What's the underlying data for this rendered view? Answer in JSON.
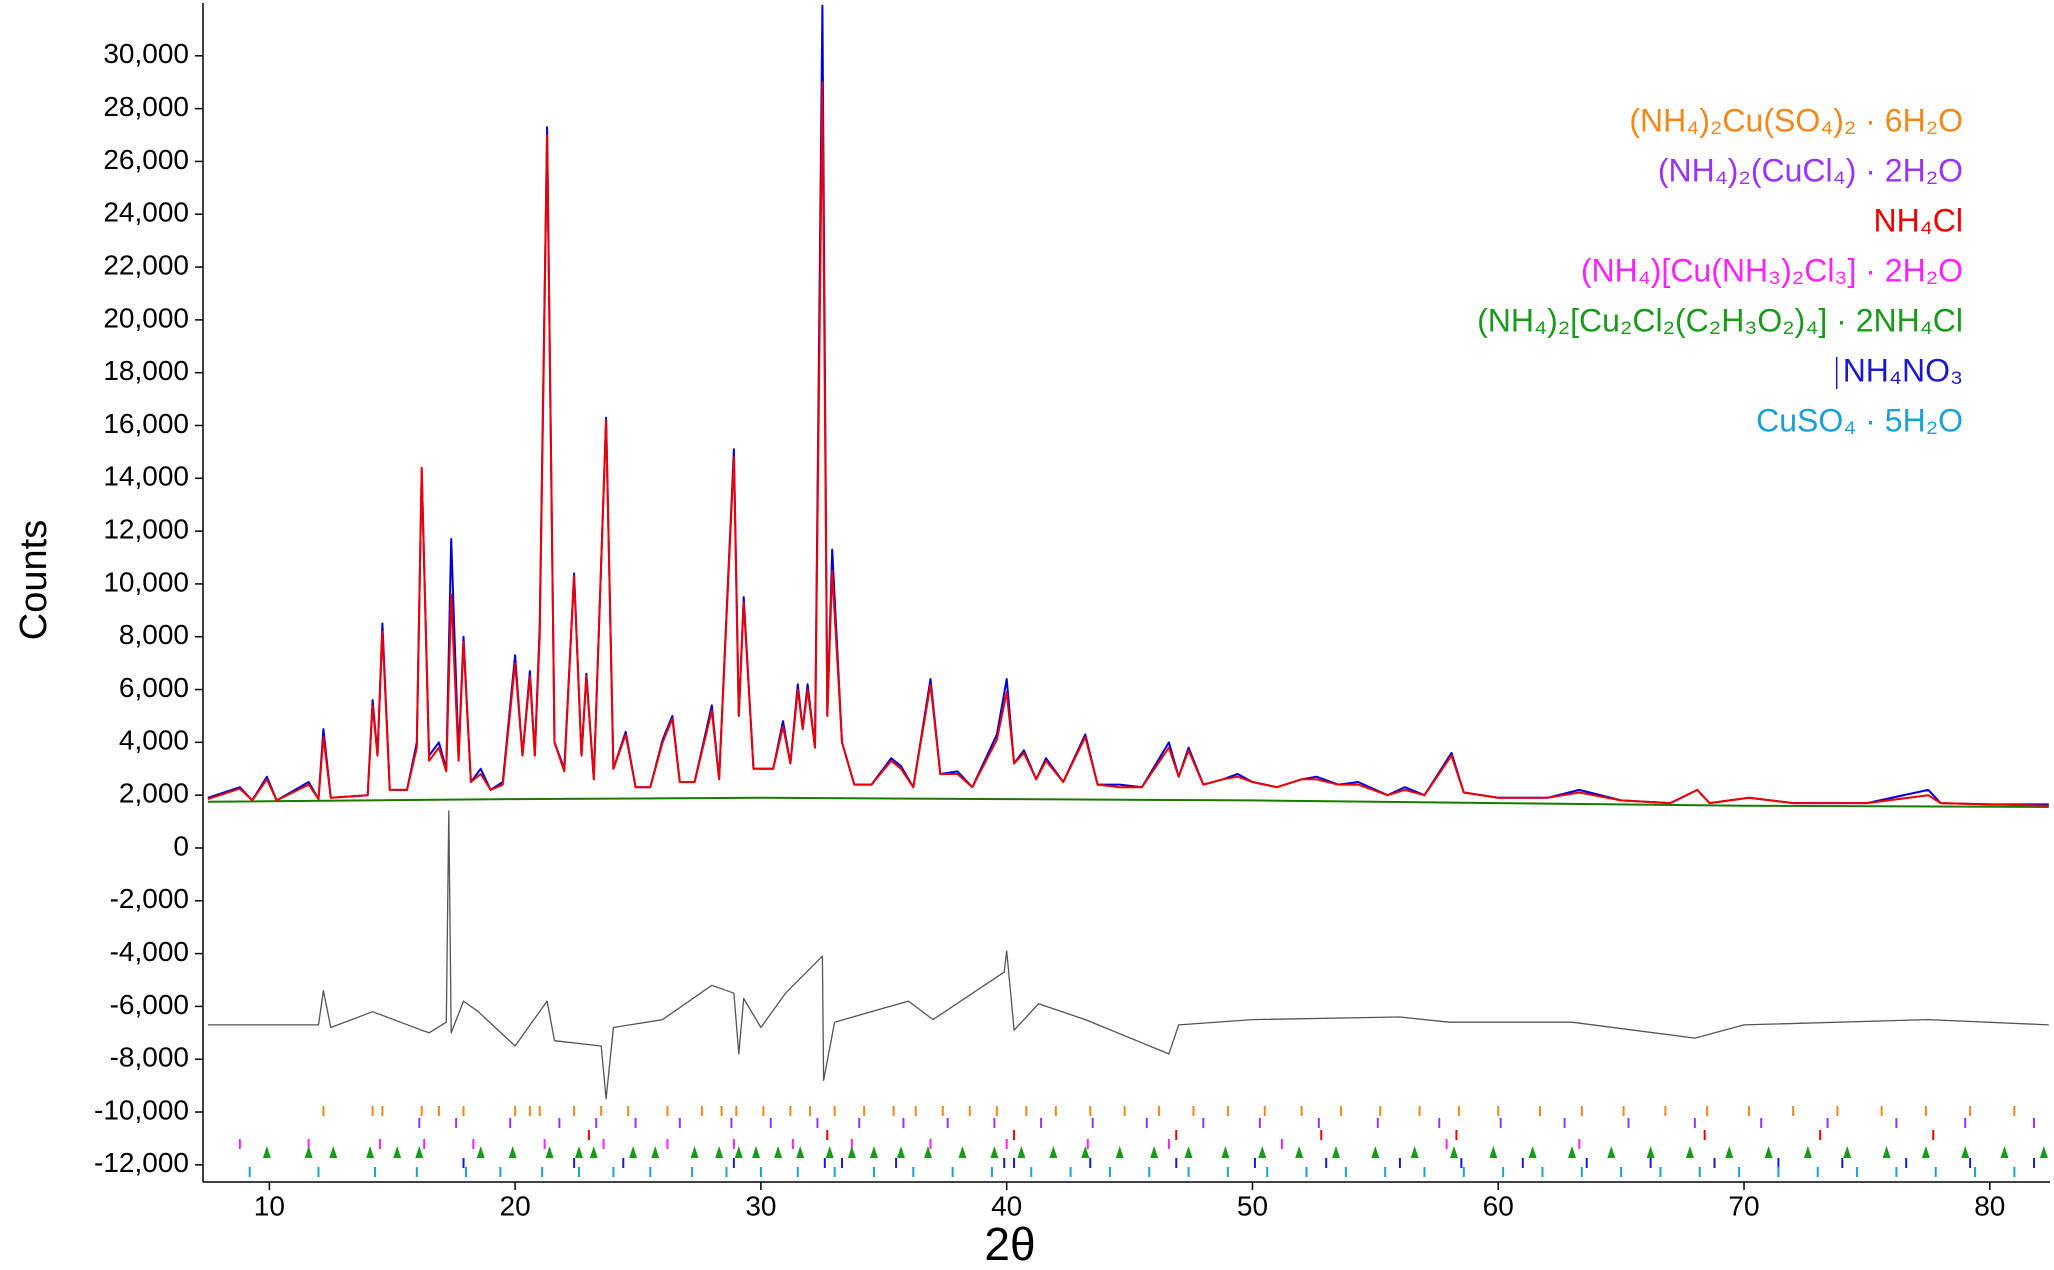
{
  "chart_data": {
    "type": "line",
    "xlabel": "2θ",
    "ylabel": "Counts",
    "xlim": [
      7.3,
      82.45
    ],
    "ylim": [
      -12650,
      32000
    ],
    "xticks": [
      10,
      20,
      30,
      40,
      50,
      60,
      70,
      80
    ],
    "yticks": [
      {
        "value": -12000,
        "label": "-12,000"
      },
      {
        "value": -10000,
        "label": "-10,000"
      },
      {
        "value": -8000,
        "label": "-8,000"
      },
      {
        "value": -6000,
        "label": "-6,000"
      },
      {
        "value": -4000,
        "label": "-4,000"
      },
      {
        "value": -2000,
        "label": "-2,000"
      },
      0,
      {
        "value": 2000,
        "label": "2,000"
      },
      {
        "value": 4000,
        "label": "4,000"
      },
      {
        "value": 6000,
        "label": "6,000"
      },
      {
        "value": 8000,
        "label": "8,000"
      },
      {
        "value": 10000,
        "label": "10,000"
      },
      {
        "value": 12000,
        "label": "12,000"
      },
      {
        "value": 14000,
        "label": "14,000"
      },
      {
        "value": 16000,
        "label": "16,000"
      },
      {
        "value": 18000,
        "label": "18,000"
      },
      {
        "value": 20000,
        "label": "20,000"
      },
      {
        "value": 22000,
        "label": "22,000"
      },
      {
        "value": 24000,
        "label": "24,000"
      },
      {
        "value": 26000,
        "label": "26,000"
      },
      {
        "value": 28000,
        "label": "28,000"
      },
      {
        "value": 30000,
        "label": "30,000"
      }
    ],
    "legend": "upper right",
    "series": [
      {
        "color": "#1a7a00",
        "x": [
          7.5,
          20,
          30,
          40,
          50,
          60,
          70,
          82.4
        ],
        "values": [
          1750,
          1850,
          1900,
          1850,
          1800,
          1700,
          1600,
          1550
        ]
      },
      {
        "color": "#555555",
        "x": [
          7.5,
          12.0,
          12.2,
          12.5,
          14.2,
          16.2,
          16.5,
          17.2,
          17.3,
          17.4,
          17.9,
          18.5,
          20.0,
          21.3,
          21.6,
          23.5,
          23.7,
          24.0,
          26.0,
          28.0,
          28.9,
          29.1,
          29.3,
          30.0,
          31.0,
          32.5,
          32.55,
          33.0,
          36.0,
          37.0,
          39.9,
          40.0,
          40.3,
          41.3,
          43.2,
          46.6,
          47.0,
          50.0,
          56.0,
          58.0,
          63.0,
          68.0,
          70.0,
          77.5,
          82.4
        ],
        "values": [
          -6700,
          -6700,
          -5400,
          -6800,
          -6200,
          -6900,
          -7000,
          -6600,
          1400,
          -7000,
          -5800,
          -6200,
          -7500,
          -5800,
          -7300,
          -7500,
          -9500,
          -6800,
          -6500,
          -5200,
          -5500,
          -7800,
          -5700,
          -6800,
          -5500,
          -4100,
          -8800,
          -6600,
          -5800,
          -6500,
          -4700,
          -3900,
          -6900,
          -5900,
          -6500,
          -7800,
          -6700,
          -6500,
          -6400,
          -6600,
          -6600,
          -7200,
          -6700,
          -6500,
          -6700
        ]
      },
      {
        "color": "#0000dd",
        "x": [
          7.5,
          8.8,
          9.3,
          9.9,
          10.3,
          11.6,
          12.0,
          12.2,
          12.5,
          14.0,
          14.2,
          14.4,
          14.6,
          14.9,
          15.6,
          16.0,
          16.2,
          16.5,
          16.9,
          17.2,
          17.4,
          17.7,
          17.9,
          18.2,
          18.6,
          19.0,
          19.5,
          20.0,
          20.3,
          20.6,
          20.8,
          21.0,
          21.3,
          21.6,
          22.0,
          22.4,
          22.7,
          22.9,
          23.2,
          23.7,
          24.0,
          24.5,
          24.9,
          25.5,
          26.0,
          26.4,
          26.7,
          27.3,
          28.0,
          28.3,
          28.9,
          29.1,
          29.3,
          29.7,
          30.5,
          30.9,
          31.2,
          31.5,
          31.7,
          31.9,
          32.2,
          32.5,
          32.7,
          32.9,
          33.3,
          33.8,
          34.5,
          35.3,
          35.7,
          36.2,
          36.9,
          37.3,
          38.0,
          38.6,
          39.6,
          40.0,
          40.3,
          40.7,
          41.2,
          41.6,
          42.3,
          43.2,
          43.7,
          44.6,
          45.5,
          46.6,
          47.0,
          47.4,
          48.0,
          48.8,
          49.4,
          50.0,
          51.0,
          52.0,
          52.6,
          53.5,
          54.3,
          55.5,
          56.2,
          57.0,
          58.1,
          58.6,
          60.0,
          62.0,
          63.3,
          65.0,
          67.0,
          68.1,
          68.6,
          70.2,
          72.0,
          75.0,
          77.5,
          78.0,
          80.0,
          82.4
        ],
        "values": [
          1900,
          2300,
          1800,
          2700,
          1800,
          2500,
          1850,
          4500,
          1900,
          2000,
          5600,
          3500,
          8500,
          2200,
          2200,
          4000,
          14300,
          3500,
          4000,
          3000,
          11700,
          3500,
          8000,
          2500,
          3000,
          2200,
          2500,
          7300,
          3500,
          6700,
          3500,
          8400,
          27300,
          4000,
          3000,
          10400,
          3500,
          6600,
          2600,
          16300,
          3000,
          4400,
          2300,
          2300,
          4100,
          5000,
          2500,
          2500,
          5400,
          2600,
          15100,
          5000,
          9500,
          3000,
          3000,
          4800,
          3200,
          6200,
          4500,
          6200,
          3800,
          31900,
          5000,
          11300,
          4000,
          2400,
          2400,
          3400,
          3100,
          2300,
          6400,
          2800,
          2900,
          2300,
          4300,
          6400,
          3200,
          3700,
          2600,
          3400,
          2500,
          4300,
          2400,
          2400,
          2300,
          4000,
          2700,
          3800,
          2400,
          2600,
          2800,
          2500,
          2300,
          2600,
          2700,
          2400,
          2500,
          2000,
          2300,
          2000,
          3600,
          2100,
          1900,
          1900,
          2200,
          1800,
          1700,
          2200,
          1700,
          1900,
          1700,
          1700,
          2200,
          1700,
          1650,
          1650
        ]
      },
      {
        "color": "#ee0000",
        "x": [
          7.5,
          8.8,
          9.3,
          9.9,
          10.3,
          11.6,
          12.0,
          12.2,
          12.5,
          14.0,
          14.2,
          14.4,
          14.6,
          14.9,
          15.6,
          16.0,
          16.2,
          16.5,
          16.9,
          17.2,
          17.4,
          17.7,
          17.9,
          18.2,
          18.6,
          19.0,
          19.5,
          20.0,
          20.3,
          20.6,
          20.8,
          21.0,
          21.3,
          21.6,
          22.0,
          22.4,
          22.7,
          22.9,
          23.2,
          23.7,
          24.0,
          24.5,
          24.9,
          25.5,
          26.0,
          26.4,
          26.7,
          27.3,
          28.0,
          28.3,
          28.9,
          29.1,
          29.3,
          29.7,
          30.5,
          30.9,
          31.2,
          31.5,
          31.7,
          31.9,
          32.2,
          32.5,
          32.7,
          32.9,
          33.3,
          33.8,
          34.5,
          35.3,
          35.7,
          36.2,
          36.9,
          37.3,
          38.0,
          38.6,
          39.6,
          40.0,
          40.3,
          40.7,
          41.2,
          41.6,
          42.3,
          43.2,
          43.7,
          44.6,
          45.5,
          46.6,
          47.0,
          47.4,
          48.0,
          48.8,
          49.4,
          50.0,
          51.0,
          52.0,
          52.6,
          53.5,
          54.3,
          55.5,
          56.2,
          57.0,
          58.1,
          58.6,
          60.0,
          62.0,
          63.3,
          65.0,
          67.0,
          68.1,
          68.6,
          70.2,
          72.0,
          75.0,
          77.5,
          78.0,
          80.0,
          82.4
        ],
        "values": [
          1850,
          2250,
          1800,
          2600,
          1800,
          2400,
          1850,
          4200,
          1900,
          2000,
          5400,
          3500,
          8200,
          2200,
          2200,
          3800,
          14400,
          3300,
          3800,
          2900,
          9600,
          3300,
          7800,
          2500,
          2800,
          2200,
          2400,
          7000,
          3500,
          6500,
          3500,
          8000,
          27000,
          4000,
          2900,
          10300,
          3500,
          6500,
          2600,
          16200,
          3000,
          4300,
          2300,
          2300,
          4000,
          4900,
          2500,
          2500,
          5200,
          2600,
          14800,
          5000,
          9300,
          3000,
          3000,
          4600,
          3200,
          6000,
          4500,
          6000,
          3800,
          29000,
          5000,
          10500,
          4000,
          2400,
          2400,
          3300,
          3000,
          2300,
          6200,
          2800,
          2800,
          2300,
          4100,
          5900,
          3200,
          3600,
          2600,
          3300,
          2500,
          4200,
          2400,
          2300,
          2300,
          3800,
          2700,
          3700,
          2400,
          2600,
          2700,
          2500,
          2300,
          2600,
          2600,
          2400,
          2400,
          2000,
          2200,
          2000,
          3500,
          2100,
          1900,
          1900,
          2100,
          1800,
          1700,
          2200,
          1700,
          1900,
          1700,
          1700,
          2000,
          1700,
          1650,
          1600
        ]
      }
    ],
    "phases": [
      {
        "name": "(NH₄)₂Cu(SO₄)₂ · 6H₂O",
        "color": "#f0881a",
        "reflections": [
          12.2,
          14.2,
          14.6,
          16.2,
          16.9,
          17.9,
          20.0,
          20.6,
          21.0,
          22.4,
          23.5,
          24.6,
          26.2,
          27.6,
          28.4,
          29.0,
          30.1,
          31.2,
          32.0,
          33.0,
          34.2,
          35.4,
          36.3,
          37.4,
          38.5,
          39.6,
          40.8,
          42.0,
          43.4,
          44.8,
          46.2,
          47.6,
          49.0,
          50.5,
          52.0,
          53.6,
          55.2,
          56.8,
          58.4,
          60.0,
          61.7,
          63.4,
          65.1,
          66.8,
          68.5,
          70.2,
          72.0,
          73.8,
          75.6,
          77.4,
          79.2,
          81.0
        ]
      },
      {
        "name": "(NH₄)₂(CuCl₄) · 2H₂O",
        "color": "#9933ff",
        "reflections": [
          16.1,
          17.6,
          19.8,
          21.8,
          23.3,
          24.9,
          26.7,
          28.8,
          30.4,
          32.3,
          34.0,
          35.8,
          37.6,
          39.5,
          41.4,
          43.5,
          45.7,
          48.0,
          50.3,
          52.7,
          55.1,
          57.6,
          60.1,
          62.7,
          65.3,
          68.0,
          70.7,
          73.4,
          76.2,
          79.0,
          81.8
        ]
      },
      {
        "name": "NH₄Cl",
        "color": "#ee0000",
        "reflections": [
          23.0,
          32.7,
          40.3,
          46.9,
          52.8,
          58.3,
          68.4,
          73.1,
          77.7
        ]
      },
      {
        "name": "(NH₄)[Cu(NH₃)₂Cl₃] · 2H₂O",
        "color": "#ff22ff",
        "reflections": [
          8.8,
          11.6,
          14.5,
          16.3,
          18.3,
          21.2,
          23.6,
          26.2,
          28.9,
          31.3,
          33.7,
          36.9,
          40.0,
          43.3,
          46.6,
          51.2,
          57.9,
          63.3
        ]
      },
      {
        "name": "(NH₄)₂[Cu₂Cl₂(C₂H₃O₂)₄] · 2NH₄Cl",
        "color": "#1a9a1a",
        "reflections": [
          9.9,
          11.6,
          12.6,
          14.1,
          15.2,
          16.1,
          18.6,
          19.9,
          21.4,
          22.6,
          23.2,
          24.8,
          25.7,
          27.3,
          28.3,
          29.1,
          29.8,
          30.7,
          31.6,
          32.8,
          33.7,
          34.6,
          35.7,
          36.8,
          38.2,
          39.5,
          40.6,
          41.9,
          43.2,
          44.6,
          46.0,
          47.4,
          48.9,
          50.4,
          51.9,
          53.4,
          55.0,
          56.6,
          58.2,
          59.8,
          61.4,
          63.0,
          64.6,
          66.2,
          67.8,
          69.4,
          71.0,
          72.6,
          74.2,
          75.8,
          77.4,
          79.0,
          80.6,
          82.2
        ]
      },
      {
        "name": "NH₄NO₃",
        "color": "#1a1acc",
        "reflections": [
          17.9,
          22.4,
          24.4,
          28.9,
          32.6,
          33.3,
          35.5,
          39.9,
          40.3,
          43.4,
          46.9,
          50.1,
          53.0,
          56.0,
          58.5,
          61.0,
          63.6,
          66.2,
          68.8,
          71.4,
          74.0,
          76.6,
          79.2,
          81.8
        ]
      },
      {
        "name": "CuSO₄ · 5H₂O",
        "color": "#1ca0d8",
        "reflections": [
          9.2,
          12.0,
          14.3,
          16.0,
          18.0,
          19.4,
          21.1,
          22.6,
          24.0,
          25.5,
          27.2,
          28.6,
          30.0,
          31.5,
          33.0,
          34.6,
          36.2,
          37.8,
          39.4,
          41.0,
          42.6,
          44.2,
          45.8,
          47.4,
          49.0,
          50.6,
          52.2,
          53.8,
          55.4,
          57.0,
          58.6,
          60.2,
          61.8,
          63.4,
          65.0,
          66.6,
          68.2,
          69.8,
          71.4,
          73.0,
          74.6,
          76.2,
          77.8,
          79.4,
          81.0
        ]
      }
    ]
  }
}
